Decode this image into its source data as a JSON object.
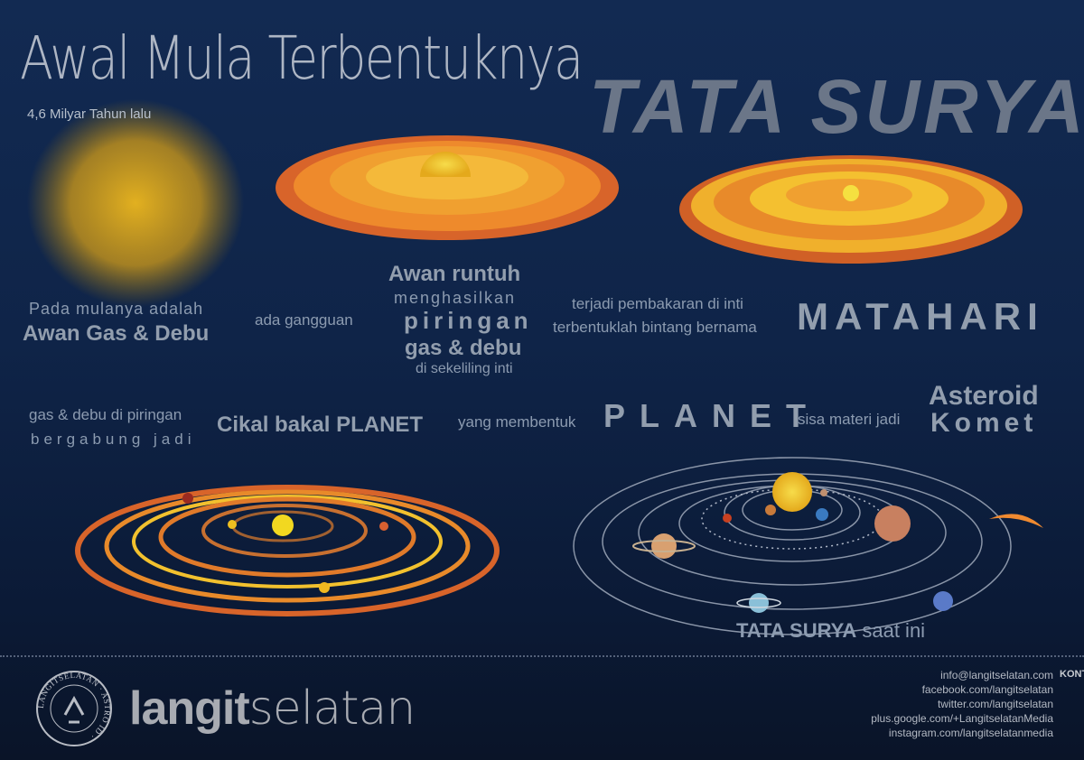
{
  "header": {
    "title": "Awal Mula Terbentuknya",
    "title_emphasis": "TATA SURYA",
    "subtitle": "4,6 Milyar Tahun lalu"
  },
  "steps": {
    "s1_a": "Pada mulanya adalah",
    "s1_b": "Awan Gas & Debu",
    "s2": "ada gangguan",
    "s3_a": "Awan runtuh",
    "s3_b": "menghasilkan",
    "s3_c": "piringan",
    "s3_d": "gas & debu",
    "s3_e": "di sekeliling inti",
    "s4_a": "terjadi pembakaran di inti",
    "s4_b": "terbentuklah bintang bernama",
    "s4_c": "MATAHARI",
    "s5_a": "gas & debu di piringan",
    "s5_b": "bergabung jadi",
    "s5_c": "Cikal bakal PLANET",
    "s6_a": "yang membentuk",
    "s6_b": "PLANET",
    "s7_a": "sisa materi jadi",
    "s7_b": "Asteroid",
    "s7_c": "Komet",
    "final_a": "TATA SURYA",
    "final_b": "saat ini"
  },
  "footer": {
    "logo_text": "LANGITSELATAN · ASTRO ID ·",
    "brand_bold": "langit",
    "brand_light": "selatan",
    "contacts": [
      "info@langitselatan.com",
      "facebook.com/langitselatan",
      "twitter.com/langitselatan",
      "plus.google.com/+LangitselatanMedia",
      "instagram.com/langitselatanmedia"
    ],
    "contact_label": "KONTAK"
  },
  "colors": {
    "background": "#0f2448",
    "text": "#8c9bb0",
    "disk_orange": "#e8772a",
    "disk_yellow": "#f2c12e",
    "sun": "#f5d020"
  }
}
